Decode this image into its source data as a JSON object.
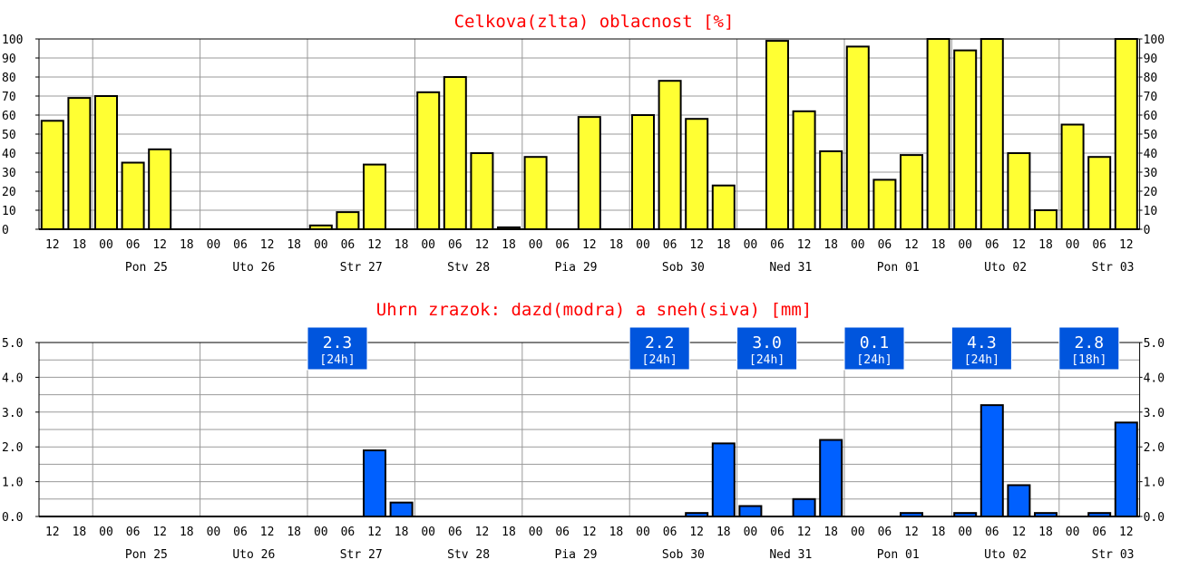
{
  "colors": {
    "title": "#ff0000",
    "cloud_fill": "#ffff33",
    "rain_fill": "#0060ff",
    "box_fill": "#0055dd",
    "box_text": "#ffffff",
    "grid": "#999999",
    "axis": "#000000"
  },
  "chart_data": [
    {
      "type": "bar",
      "title": "Celkova(zlta) oblacnost [%]",
      "xlabel": "",
      "ylabel": "",
      "ylim": [
        0,
        100
      ],
      "yticks": [
        "0",
        "10",
        "20",
        "30",
        "40",
        "50",
        "60",
        "70",
        "80",
        "90",
        "100"
      ],
      "hours": [
        "12",
        "18",
        "00",
        "06",
        "12",
        "18",
        "00",
        "06",
        "12",
        "18",
        "00",
        "06",
        "12",
        "18",
        "00",
        "06",
        "12",
        "18",
        "00",
        "06",
        "12",
        "18",
        "00",
        "06",
        "12",
        "18",
        "00",
        "06",
        "12",
        "18",
        "00",
        "06",
        "12",
        "18",
        "00",
        "06",
        "12",
        "18",
        "00",
        "06",
        "12"
      ],
      "days": [
        "Pon 25",
        "Uto 26",
        "Str 27",
        "Stv 28",
        "Pia 29",
        "Sob 30",
        "Ned 31",
        "Pon 01",
        "Uto 02",
        "Str 03"
      ],
      "grid": true,
      "series": [
        {
          "values": [
            57,
            69,
            70,
            35,
            42,
            0,
            0,
            0,
            0,
            0,
            2,
            9,
            34,
            0,
            72,
            80,
            40,
            1,
            38,
            0,
            59,
            0,
            60,
            78,
            58,
            23,
            0,
            99,
            62,
            41,
            96,
            26,
            39,
            100,
            94,
            100,
            40,
            10,
            55,
            38,
            100
          ]
        }
      ]
    },
    {
      "type": "bar",
      "title": "Uhrn zrazok: dazd(modra) a sneh(siva) [mm]",
      "xlabel": "",
      "ylabel": "",
      "ylim": [
        0,
        5.0
      ],
      "yticks": [
        "0.0",
        "1.0",
        "2.0",
        "3.0",
        "4.0",
        "5.0"
      ],
      "hours": [
        "12",
        "18",
        "00",
        "06",
        "12",
        "18",
        "00",
        "06",
        "12",
        "18",
        "00",
        "06",
        "12",
        "18",
        "00",
        "06",
        "12",
        "18",
        "00",
        "06",
        "12",
        "18",
        "00",
        "06",
        "12",
        "18",
        "00",
        "06",
        "12",
        "18",
        "00",
        "06",
        "12",
        "18",
        "00",
        "06",
        "12",
        "18",
        "00",
        "06",
        "12"
      ],
      "days": [
        "Pon 25",
        "Uto 26",
        "Str 27",
        "Stv 28",
        "Pia 29",
        "Sob 30",
        "Ned 31",
        "Pon 01",
        "Uto 02",
        "Str 03"
      ],
      "grid": true,
      "series": [
        {
          "values": [
            0,
            0,
            0,
            0,
            0,
            0,
            0,
            0,
            0,
            0,
            0,
            0,
            1.9,
            0.4,
            0,
            0,
            0,
            0,
            0,
            0,
            0,
            0,
            0,
            0,
            0.1,
            2.1,
            0.3,
            0,
            0.5,
            2.2,
            0,
            0,
            0.1,
            0,
            0.1,
            3.2,
            0.9,
            0.1,
            0,
            0.1,
            2.7
          ]
        }
      ],
      "daily_totals": [
        {
          "after_hour_index": 10,
          "amount": "2.3",
          "period": "[24h]"
        },
        {
          "after_hour_index": 22,
          "amount": "2.2",
          "period": "[24h]"
        },
        {
          "after_hour_index": 26,
          "amount": "3.0",
          "period": "[24h]"
        },
        {
          "after_hour_index": 30,
          "amount": "0.1",
          "period": "[24h]"
        },
        {
          "after_hour_index": 34,
          "amount": "4.3",
          "period": "[24h]"
        },
        {
          "after_hour_index": 38,
          "amount": "2.8",
          "period": "[18h]"
        }
      ]
    }
  ]
}
